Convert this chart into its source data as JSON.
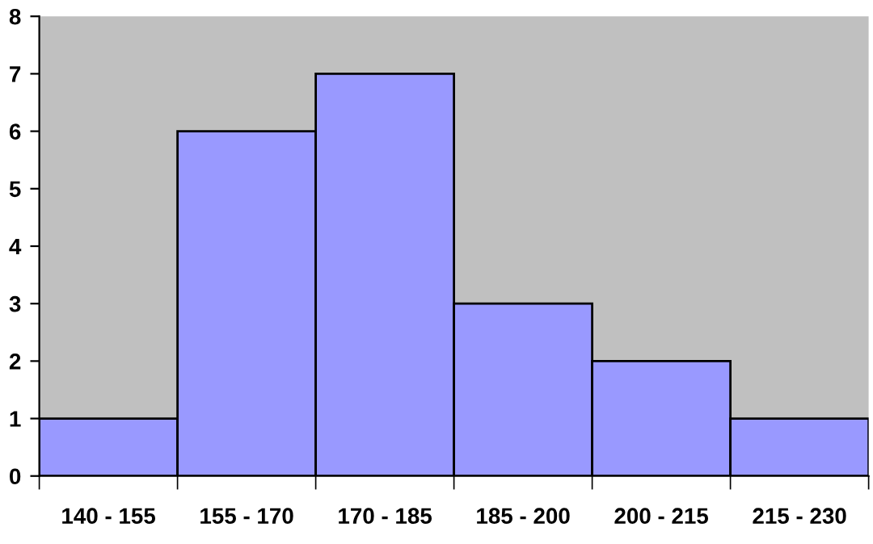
{
  "chart_data": {
    "type": "bar",
    "categories": [
      "140 - 155",
      "155 - 170",
      "170 - 185",
      "185 - 200",
      "200 - 215",
      "215 - 230"
    ],
    "values": [
      1,
      6,
      7,
      3,
      2,
      1
    ],
    "color": "#9999ff",
    "ylim": [
      0,
      8
    ],
    "yticks": [
      0,
      1,
      2,
      3,
      4,
      5,
      6,
      7,
      8
    ],
    "grid": false
  }
}
